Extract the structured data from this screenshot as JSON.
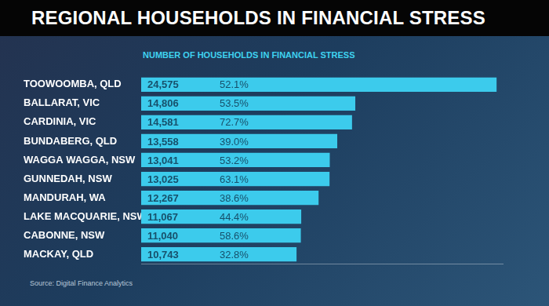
{
  "chart_data": {
    "type": "bar",
    "orientation": "horizontal",
    "title": "REGIONAL HOUSEHOLDS IN FINANCIAL STRESS",
    "subtitle": "NUMBER OF HOUSEHOLDS IN FINANCIAL STRESS",
    "source": "Source: Digital Finance Analytics",
    "categories": [
      "TOOWOOMBA, QLD",
      "BALLARAT, VIC",
      "CARDINIA, VIC",
      "BUNDABERG, QLD",
      "WAGGA WAGGA, NSW",
      "GUNNEDAH, NSW",
      "MANDURAH, WA",
      "LAKE MACQUARIE, NSW",
      "CABONNE, NSW",
      "MACKAY, QLD"
    ],
    "values": [
      24575,
      14806,
      14581,
      13558,
      13041,
      13025,
      12267,
      11067,
      11040,
      10743
    ],
    "value_labels": [
      "24,575",
      "14,806",
      "14,581",
      "13,558",
      "13,041",
      "13,025",
      "12,267",
      "11,067",
      "11,040",
      "10,743"
    ],
    "percentage_labels": [
      "52.1%",
      "53.5%",
      "72.7%",
      "39.0%",
      "53.2%",
      "63.1%",
      "38.6%",
      "44.4%",
      "58.6%",
      "32.8%"
    ],
    "color": "#3ccbec",
    "xlim": [
      0,
      25000
    ],
    "grid": false,
    "tick_labels": "y",
    "data_labels": true
  }
}
